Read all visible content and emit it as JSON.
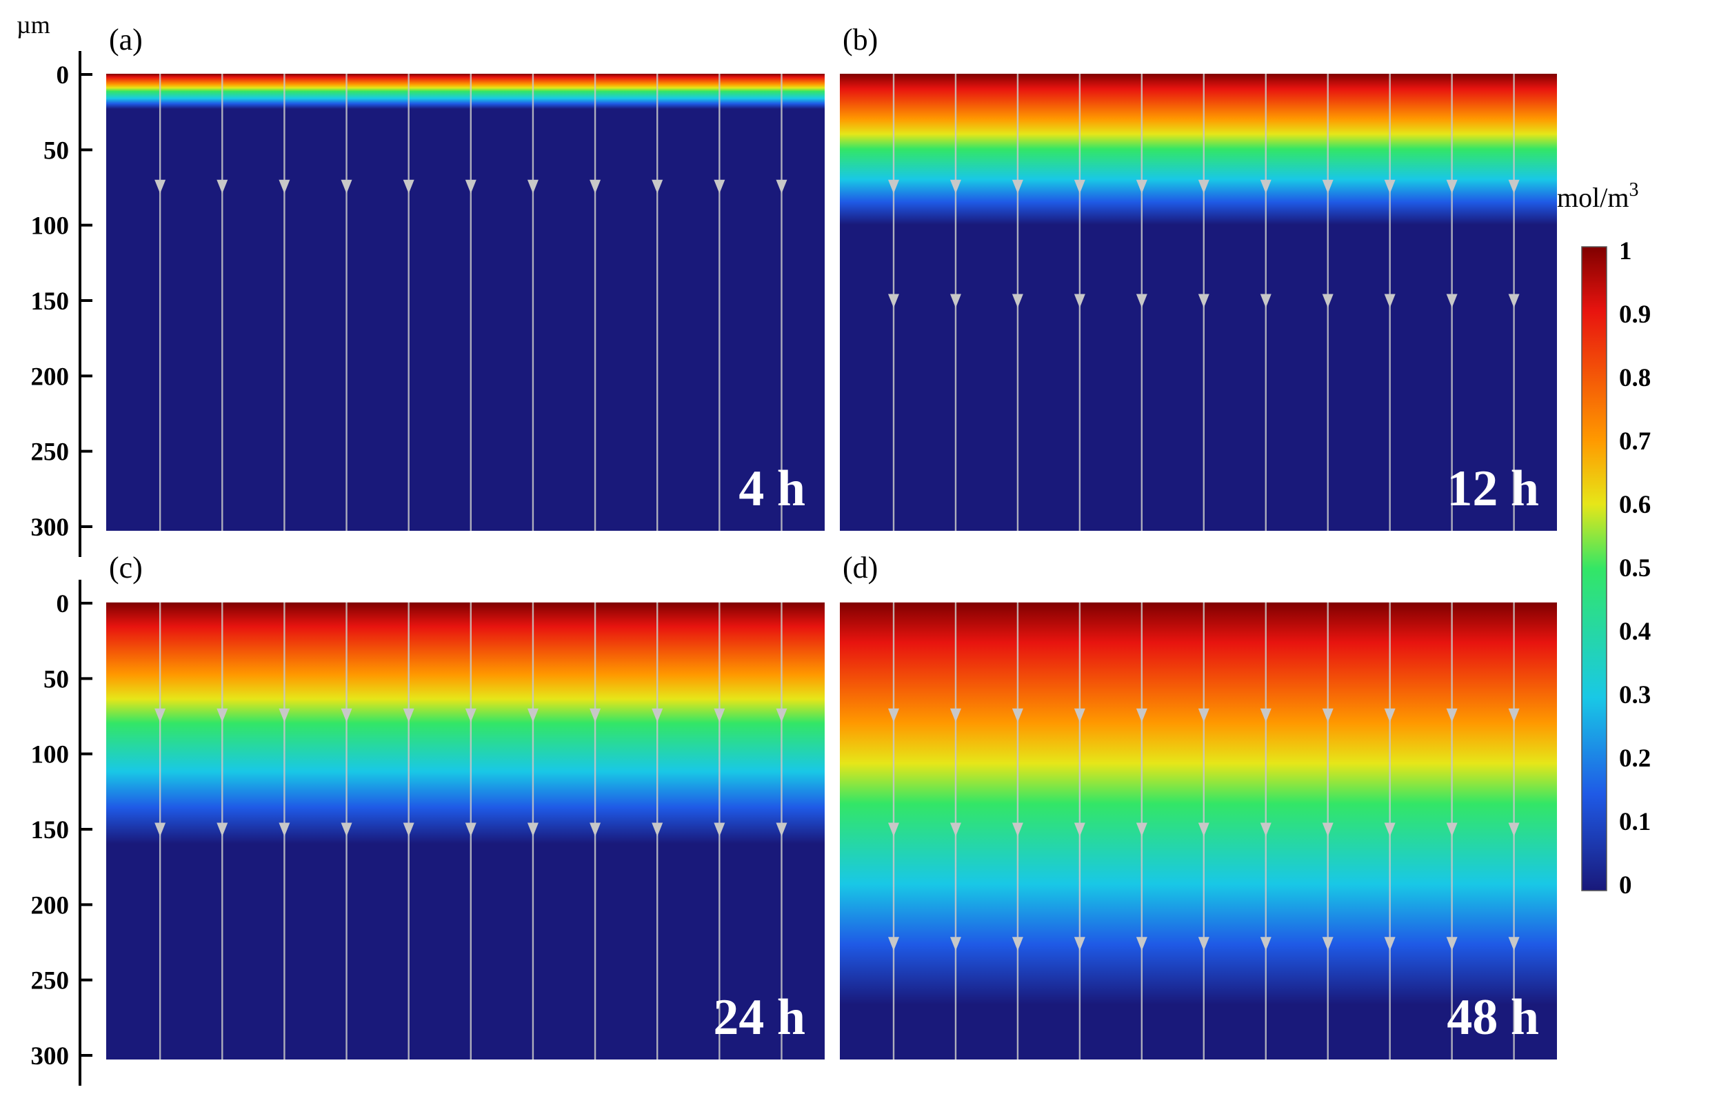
{
  "figure": {
    "y_unit": "µm",
    "y_ticks": [
      "0",
      "50",
      "100",
      "150",
      "200",
      "250",
      "300"
    ],
    "panels": [
      {
        "tag": "(a)",
        "time": "4 h",
        "front": 0.035,
        "arrow_rows": [
          0.25
        ]
      },
      {
        "tag": "(b)",
        "time": "12 h",
        "front": 0.15,
        "arrow_rows": [
          0.25,
          0.5
        ]
      },
      {
        "tag": "(c)",
        "time": "24 h",
        "front": 0.24,
        "arrow_rows": [
          0.25,
          0.5
        ]
      },
      {
        "tag": "(d)",
        "time": "48 h",
        "front": 0.4,
        "arrow_rows": [
          0.25,
          0.5,
          0.75
        ]
      }
    ],
    "colorbar": {
      "title": "mol/m",
      "title_sup": "3",
      "labels": [
        "1",
        "0.9",
        "0.8",
        "0.7",
        "0.6",
        "0.5",
        "0.4",
        "0.3",
        "0.2",
        "0.1",
        "0"
      ]
    },
    "colors": {
      "dark_red": "#800000",
      "red": "#e8140f",
      "orange": "#ff9900",
      "yellow": "#e6e619",
      "green": "#33e666",
      "cyan": "#19c8e6",
      "blue": "#1f5ae6",
      "navy": "#19197a",
      "arrow": "#c8c8c8"
    }
  }
}
